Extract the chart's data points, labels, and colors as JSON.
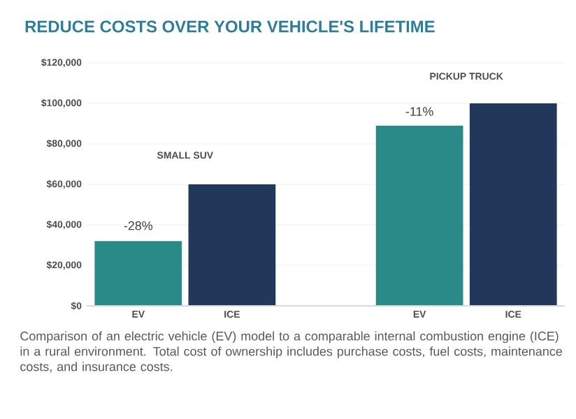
{
  "chart_data": {
    "type": "bar",
    "title": "REDUCE COSTS OVER YOUR VEHICLE'S LIFETIME",
    "categories": [
      "EV",
      "ICE",
      null,
      "EV",
      "ICE"
    ],
    "values": [
      32000,
      60000,
      null,
      89000,
      100000
    ],
    "colors": [
      "#2a8a87",
      "#22385a",
      "#2a8a87",
      "#2a8a87",
      "#22385a"
    ],
    "ylim": [
      0,
      120000
    ],
    "yticks": [
      {
        "value": 0,
        "label": "$0"
      },
      {
        "value": 20000,
        "label": "$20,000"
      },
      {
        "value": 40000,
        "label": "$40,000"
      },
      {
        "value": 60000,
        "label": "$60,000"
      },
      {
        "value": 80000,
        "label": "$80,000"
      },
      {
        "value": 100000,
        "label": "$100,000"
      },
      {
        "value": 120000,
        "label": "$120,000"
      }
    ],
    "grid": "y",
    "annotations": [
      "-28%",
      "SMALL SUV",
      "-11%",
      "PICKUP TRUCK",
      "Comparison of an electric vehicle (EV) model to a comparable internal combustion engine (ICE) in a rural environment. Total cost of ownership includes purchase costs, fuel costs, maintenance costs, and insurance costs."
    ]
  }
}
